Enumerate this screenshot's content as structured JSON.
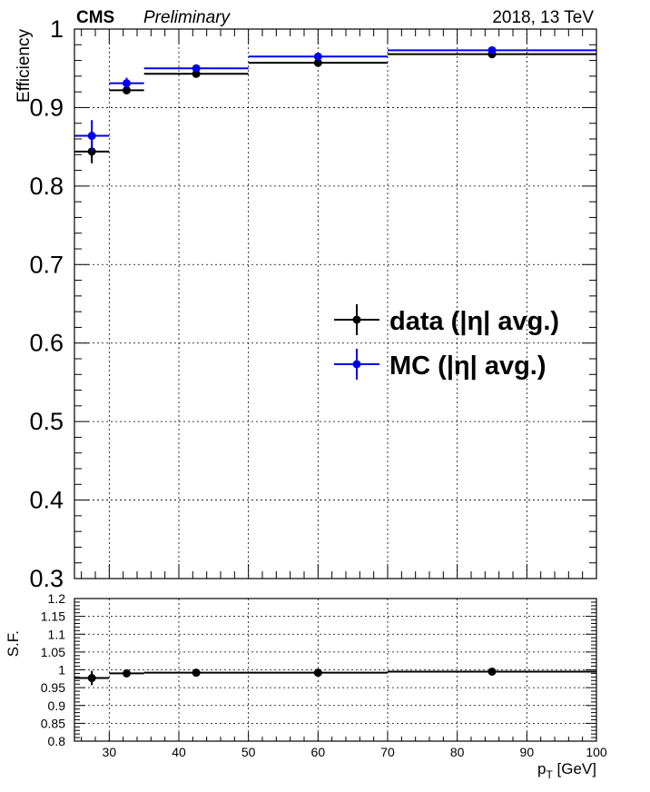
{
  "header": {
    "experiment": "CMS",
    "status": "Preliminary",
    "run_info": "2018, 13 TeV"
  },
  "chart_data": [
    {
      "panel": "efficiency",
      "type": "scatter",
      "ylabel": "Efficiency",
      "xlim": [
        25,
        100
      ],
      "ylim": [
        0.3,
        1.0
      ],
      "y_ticks": [
        "0.3",
        "0.4",
        "0.5",
        "0.6",
        "0.7",
        "0.8",
        "0.9",
        "1"
      ],
      "grid": true,
      "legend_position": "center-right",
      "series": [
        {
          "name": "data (|η| avg.)",
          "color": "#000000",
          "points": [
            {
              "x": 27.5,
              "xlow": 25,
              "xhigh": 30,
              "y": 0.844,
              "yerr": 0.015
            },
            {
              "x": 32.5,
              "xlow": 30,
              "xhigh": 35,
              "y": 0.922,
              "yerr": 0.005
            },
            {
              "x": 42.5,
              "xlow": 35,
              "xhigh": 50,
              "y": 0.943,
              "yerr": 0.003
            },
            {
              "x": 60,
              "xlow": 50,
              "xhigh": 70,
              "y": 0.957,
              "yerr": 0.002
            },
            {
              "x": 85,
              "xlow": 70,
              "xhigh": 100,
              "y": 0.968,
              "yerr": 0.002
            }
          ]
        },
        {
          "name": "MC (|η| avg.)",
          "color": "#0000ee",
          "points": [
            {
              "x": 27.5,
              "xlow": 25,
              "xhigh": 30,
              "y": 0.864,
              "yerr": 0.02
            },
            {
              "x": 32.5,
              "xlow": 30,
              "xhigh": 35,
              "y": 0.931,
              "yerr": 0.007
            },
            {
              "x": 42.5,
              "xlow": 35,
              "xhigh": 50,
              "y": 0.95,
              "yerr": 0.004
            },
            {
              "x": 60,
              "xlow": 50,
              "xhigh": 70,
              "y": 0.965,
              "yerr": 0.003
            },
            {
              "x": 85,
              "xlow": 70,
              "xhigh": 100,
              "y": 0.973,
              "yerr": 0.002
            }
          ]
        }
      ]
    },
    {
      "panel": "scale-factor",
      "type": "scatter",
      "xlabel": "p_T [GeV]",
      "xlabel_main": "p",
      "xlabel_sub": "T",
      "xlabel_unit": " [GeV]",
      "ylabel": "S.F.",
      "xlim": [
        25,
        100
      ],
      "ylim": [
        0.8,
        1.2
      ],
      "x_ticks": [
        "30",
        "40",
        "50",
        "60",
        "70",
        "80",
        "90",
        "100"
      ],
      "y_ticks": [
        "0.8",
        "0.85",
        "0.9",
        "0.95",
        "1",
        "1.05",
        "1.1",
        "1.15",
        "1.2"
      ],
      "grid": true,
      "series": [
        {
          "name": "",
          "color": "#000000",
          "points": [
            {
              "x": 27.5,
              "xlow": 25,
              "xhigh": 30,
              "y": 0.977,
              "yerr": 0.02
            },
            {
              "x": 32.5,
              "xlow": 30,
              "xhigh": 35,
              "y": 0.99,
              "yerr": 0.007
            },
            {
              "x": 42.5,
              "xlow": 35,
              "xhigh": 50,
              "y": 0.992,
              "yerr": 0.004
            },
            {
              "x": 60,
              "xlow": 50,
              "xhigh": 70,
              "y": 0.992,
              "yerr": 0.003
            },
            {
              "x": 85,
              "xlow": 70,
              "xhigh": 100,
              "y": 0.995,
              "yerr": 0.002
            }
          ]
        }
      ]
    }
  ]
}
